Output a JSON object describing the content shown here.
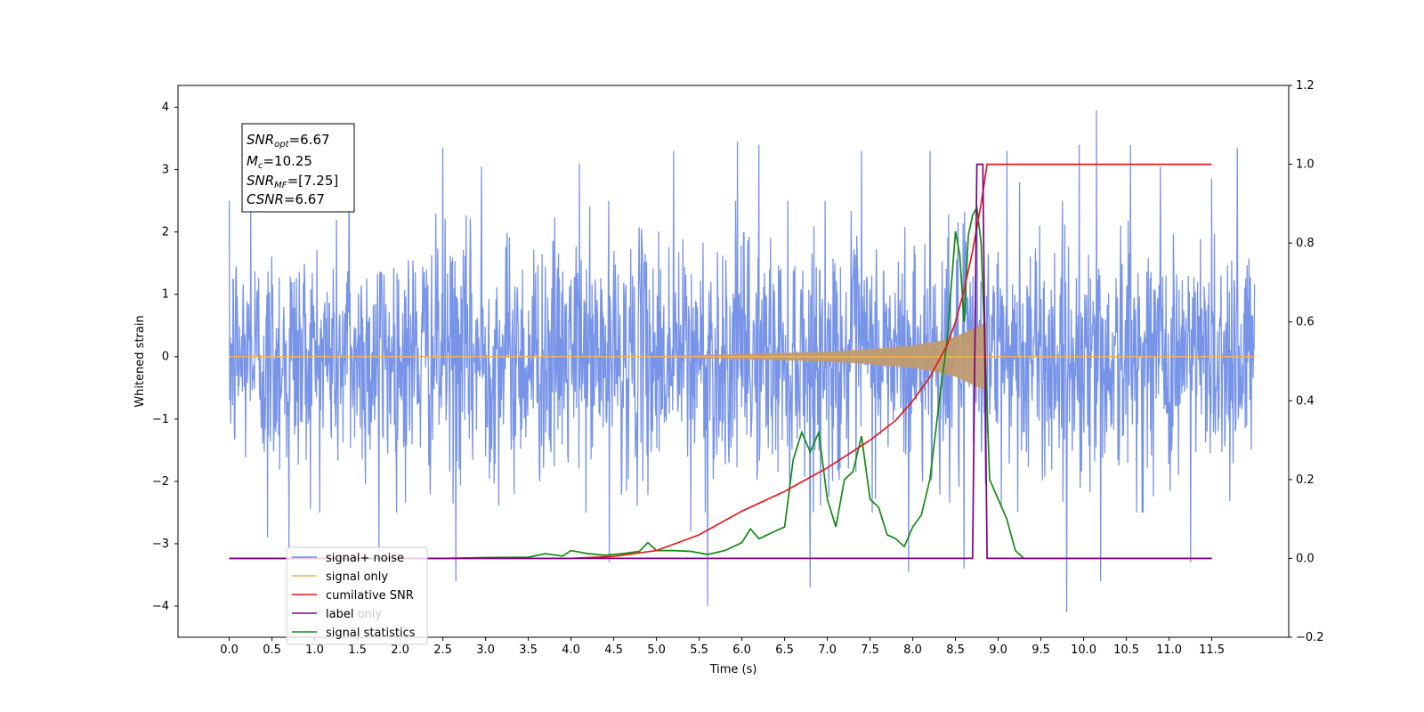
{
  "chart_data": {
    "type": "line",
    "xlabel": "Time (s)",
    "ylabel_left": "Whitened strain",
    "xlim": [
      -0.6,
      12.4
    ],
    "ylim_left": [
      -4.5,
      4.35
    ],
    "ylim_right": [
      -0.2,
      1.2
    ],
    "x_ticks": [
      "0.0",
      "0.5",
      "1.0",
      "1.5",
      "2.0",
      "2.5",
      "3.0",
      "3.5",
      "4.0",
      "4.5",
      "5.0",
      "5.5",
      "6.0",
      "6.5",
      "7.0",
      "7.5",
      "8.0",
      "8.5",
      "9.0",
      "9.5",
      "10.0",
      "10.5",
      "11.0",
      "11.5"
    ],
    "y_ticks_left": [
      "4",
      "3",
      "2",
      "1",
      "0",
      "−1",
      "−2",
      "−3",
      "−4"
    ],
    "y_ticks_right": [
      "1.2",
      "1.0",
      "0.8",
      "0.6",
      "0.4",
      "0.2",
      "0.0",
      "−0.2"
    ],
    "annotation": {
      "line1_main": "SNR",
      "line1_sub": "opt",
      "line1_rest": "=6.67",
      "line2_main": "M",
      "line2_sub": "c",
      "line2_rest": "=10.25",
      "line3_main": "SNR",
      "line3_sub": "MF",
      "line3_rest": "=[7.25]",
      "line4_main": "CSNR",
      "line4_rest": "=6.67"
    },
    "legend": {
      "placement": "lower-left",
      "entries": [
        "signal+ noise",
        "signal only",
        "cumilative SNR",
        "label",
        "signal statistics"
      ],
      "ghost_text": "label only"
    },
    "series": [
      {
        "name": "signal+ noise",
        "axis": "left",
        "color": "#6d8be6",
        "description_range": [
          -2.0,
          2.0
        ],
        "spikes": [
          [
            0.25,
            2.65
          ],
          [
            0.45,
            -2.9
          ],
          [
            0.7,
            -3.1
          ],
          [
            1.4,
            3.1
          ],
          [
            1.75,
            -3.15
          ],
          [
            2.5,
            3.35
          ],
          [
            2.65,
            -3.6
          ],
          [
            2.95,
            3.05
          ],
          [
            4.1,
            3.1
          ],
          [
            4.45,
            -3.3
          ],
          [
            5.2,
            3.3
          ],
          [
            5.4,
            -2.8
          ],
          [
            5.6,
            -4.0
          ],
          [
            5.95,
            3.45
          ],
          [
            6.2,
            3.4
          ],
          [
            6.8,
            -3.7
          ],
          [
            7.4,
            3.3
          ],
          [
            7.95,
            -3.45
          ],
          [
            8.2,
            3.3
          ],
          [
            8.6,
            -3.4
          ],
          [
            9.1,
            3.3
          ],
          [
            9.25,
            2.8
          ],
          [
            9.8,
            -4.1
          ],
          [
            9.95,
            3.4
          ],
          [
            10.15,
            3.95
          ],
          [
            10.2,
            -3.6
          ],
          [
            10.55,
            3.4
          ],
          [
            10.9,
            3.05
          ],
          [
            11.25,
            -3.3
          ],
          [
            11.5,
            2.85
          ],
          [
            11.8,
            3.35
          ]
        ]
      },
      {
        "name": "signal only",
        "axis": "left",
        "color": "#f2b05e",
        "fill_color": "#c09a70",
        "envelope": [
          [
            0.0,
            0.0
          ],
          [
            5.0,
            0.01
          ],
          [
            6.0,
            0.04
          ],
          [
            7.0,
            0.08
          ],
          [
            7.5,
            0.12
          ],
          [
            8.0,
            0.18
          ],
          [
            8.3,
            0.25
          ],
          [
            8.5,
            0.32
          ],
          [
            8.7,
            0.45
          ],
          [
            8.86,
            0.55
          ],
          [
            8.87,
            0.0
          ],
          [
            12.0,
            0.0
          ]
        ]
      },
      {
        "name": "cumilative SNR",
        "axis": "right",
        "color": "#e31a1c",
        "x": [
          0.0,
          4.0,
          4.5,
          5.0,
          5.5,
          6.0,
          6.5,
          7.0,
          7.5,
          7.8,
          8.0,
          8.2,
          8.4,
          8.5,
          8.6,
          8.7,
          8.8,
          8.87,
          11.5
        ],
        "y": [
          0.0,
          0.0,
          0.005,
          0.02,
          0.06,
          0.12,
          0.17,
          0.23,
          0.3,
          0.35,
          0.4,
          0.46,
          0.54,
          0.6,
          0.68,
          0.78,
          0.9,
          1.0,
          1.0
        ]
      },
      {
        "name": "label",
        "axis": "right",
        "color": "#800080",
        "x": [
          0.0,
          8.7,
          8.75,
          8.82,
          8.87,
          11.5
        ],
        "y": [
          0.0,
          0.0,
          1.0,
          1.0,
          0.0,
          0.0
        ]
      },
      {
        "name": "signal statistics",
        "axis": "right",
        "color": "#138a13",
        "x": [
          0.0,
          2.5,
          3.0,
          3.5,
          3.7,
          3.9,
          4.0,
          4.2,
          4.4,
          4.6,
          4.8,
          4.9,
          5.0,
          5.2,
          5.4,
          5.6,
          5.8,
          6.0,
          6.1,
          6.2,
          6.4,
          6.5,
          6.6,
          6.7,
          6.8,
          6.9,
          7.0,
          7.1,
          7.2,
          7.3,
          7.4,
          7.5,
          7.6,
          7.7,
          7.8,
          7.9,
          8.0,
          8.1,
          8.2,
          8.3,
          8.4,
          8.5,
          8.55,
          8.6,
          8.65,
          8.7,
          8.75,
          8.8,
          8.85,
          8.9,
          9.0,
          9.1,
          9.2,
          9.3,
          11.5
        ],
        "y": [
          0.0,
          0.0,
          0.002,
          0.003,
          0.012,
          0.006,
          0.02,
          0.012,
          0.008,
          0.012,
          0.018,
          0.04,
          0.02,
          0.02,
          0.018,
          0.01,
          0.02,
          0.04,
          0.075,
          0.05,
          0.07,
          0.08,
          0.25,
          0.32,
          0.27,
          0.32,
          0.15,
          0.08,
          0.2,
          0.22,
          0.31,
          0.15,
          0.13,
          0.06,
          0.05,
          0.03,
          0.08,
          0.11,
          0.2,
          0.38,
          0.55,
          0.83,
          0.77,
          0.6,
          0.82,
          0.87,
          0.89,
          0.8,
          0.5,
          0.2,
          0.15,
          0.1,
          0.02,
          0.0,
          0.0
        ]
      }
    ]
  }
}
